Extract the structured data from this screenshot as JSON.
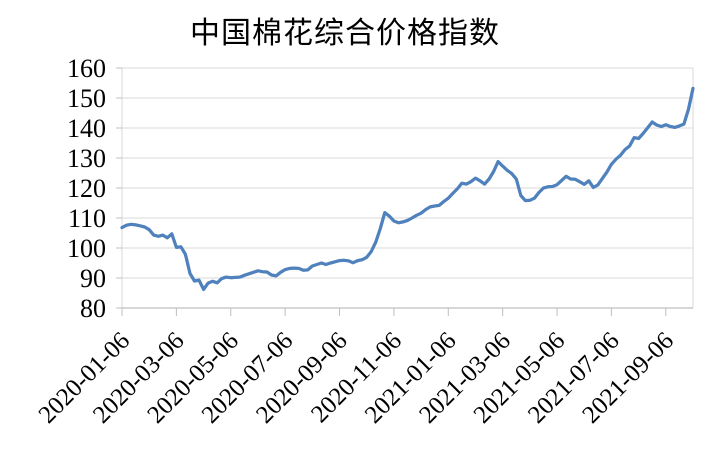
{
  "chart_data": {
    "type": "line",
    "title": "中国棉花综合价格指数",
    "legend": "none",
    "grid": "horizontal",
    "ylim": [
      80,
      160
    ],
    "y_ticks": [
      80,
      90,
      100,
      110,
      120,
      130,
      140,
      150,
      160
    ],
    "x_tick_labels": [
      "2020-01-06",
      "2020-03-06",
      "2020-05-06",
      "2020-07-06",
      "2020-09-06",
      "2020-11-06",
      "2021-01-06",
      "2021-03-06",
      "2021-05-06",
      "2021-07-06",
      "2021-09-06"
    ],
    "x_label_every": 12,
    "x_label_rotation_deg": -45,
    "colors": {
      "line": "#4F81BD",
      "gridline": "#D9D9D9",
      "axis": "#BFBFBF",
      "text": "#000000",
      "background": "#FFFFFF"
    },
    "values": [
      106.8,
      107.6,
      107.9,
      107.7,
      107.4,
      107.0,
      106.1,
      104.3,
      103.9,
      104.3,
      103.4,
      104.7,
      100.2,
      100.4,
      97.9,
      91.5,
      89.0,
      89.3,
      86.2,
      88.3,
      88.9,
      88.4,
      89.8,
      90.3,
      90.1,
      90.2,
      90.3,
      90.9,
      91.4,
      91.9,
      92.4,
      92.1,
      92.0,
      91.0,
      90.7,
      91.9,
      92.8,
      93.2,
      93.3,
      93.2,
      92.6,
      92.7,
      94.0,
      94.5,
      95.0,
      94.5,
      95.0,
      95.4,
      95.8,
      95.9,
      95.7,
      95.1,
      95.8,
      96.1,
      96.9,
      98.8,
      102.0,
      106.5,
      111.8,
      110.6,
      109.0,
      108.4,
      108.7,
      109.2,
      110.0,
      110.9,
      111.6,
      112.8,
      113.7,
      114.0,
      114.2,
      115.5,
      116.6,
      118.2,
      119.7,
      121.6,
      121.3,
      122.1,
      123.3,
      122.4,
      121.3,
      123.0,
      125.5,
      128.8,
      127.3,
      125.9,
      124.8,
      123.0,
      117.5,
      115.8,
      115.9,
      116.6,
      118.5,
      120.0,
      120.4,
      120.5,
      121.1,
      122.5,
      123.9,
      123.0,
      122.9,
      122.1,
      121.2,
      122.4,
      120.2,
      121.0,
      123.2,
      125.3,
      127.9,
      129.6,
      130.9,
      132.8,
      134.0,
      136.8,
      136.5,
      138.2,
      140.1,
      142.0,
      141.0,
      140.5,
      141.1,
      140.5,
      140.2,
      140.7,
      141.3,
      146.3,
      153.2
    ]
  }
}
